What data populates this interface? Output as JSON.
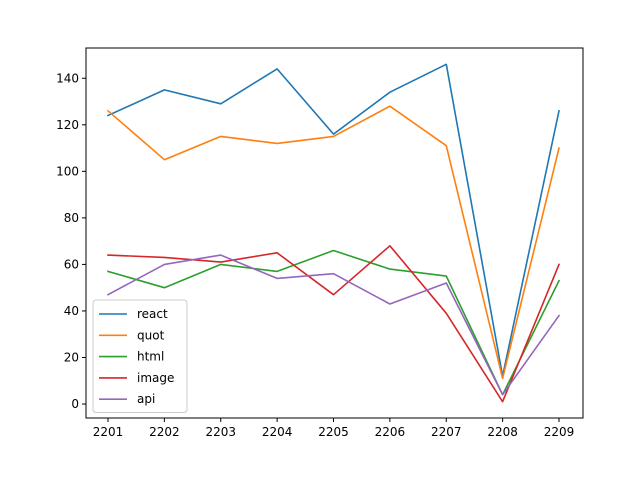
{
  "chart_data": {
    "type": "line",
    "title": "",
    "xlabel": "",
    "ylabel": "",
    "categories": [
      "2201",
      "2202",
      "2203",
      "2204",
      "2205",
      "2206",
      "2207",
      "2208",
      "2209"
    ],
    "ylim": [
      -6,
      153
    ],
    "yticks": [
      0,
      20,
      40,
      60,
      80,
      100,
      120,
      140
    ],
    "grid": false,
    "legend_position": "lower-left",
    "series": [
      {
        "name": "react",
        "color": "#1f77b4",
        "values": [
          124,
          135,
          129,
          144,
          116,
          134,
          146,
          12,
          126
        ]
      },
      {
        "name": "quot",
        "color": "#ff7f0e",
        "values": [
          126,
          105,
          115,
          112,
          115,
          128,
          111,
          11,
          110
        ]
      },
      {
        "name": "html",
        "color": "#2ca02c",
        "values": [
          57,
          50,
          60,
          57,
          66,
          58,
          55,
          4,
          53
        ]
      },
      {
        "name": "image",
        "color": "#d62728",
        "values": [
          64,
          63,
          61,
          65,
          47,
          68,
          39,
          1,
          60
        ]
      },
      {
        "name": "api",
        "color": "#9467bd",
        "values": [
          47,
          60,
          64,
          54,
          56,
          43,
          52,
          4,
          38
        ]
      }
    ]
  }
}
